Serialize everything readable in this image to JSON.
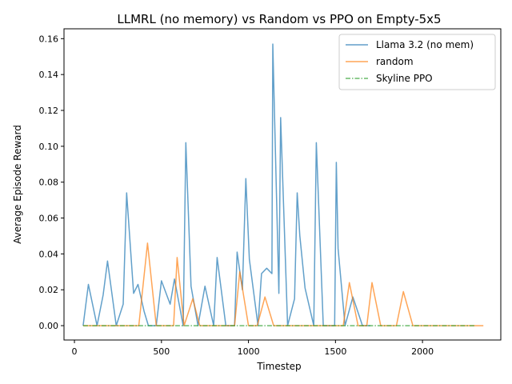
{
  "chart_data": {
    "type": "line",
    "title": "LLMRL (no memory) vs Random vs PPO on Empty-5x5",
    "xlabel": "Timestep",
    "ylabel": "Average Episode Reward",
    "xlim": [
      -60,
      2450
    ],
    "ylim": [
      -0.008,
      0.1655
    ],
    "xticks": [
      0,
      500,
      1000,
      1500,
      2000
    ],
    "yticks": [
      0.0,
      0.02,
      0.04,
      0.06,
      0.08,
      0.1,
      0.12,
      0.14,
      0.16
    ],
    "xtick_labels": [
      "0",
      "500",
      "1000",
      "1500",
      "2000"
    ],
    "ytick_labels": [
      "0.00",
      "0.02",
      "0.04",
      "0.06",
      "0.08",
      "0.10",
      "0.12",
      "0.14",
      "0.16"
    ],
    "legend_position": "top-right",
    "series": [
      {
        "name": "Llama 3.2 (no mem)",
        "color": "#1f77b4",
        "style": "solid",
        "x": [
          50,
          80,
          130,
          165,
          190,
          240,
          280,
          300,
          340,
          365,
          400,
          425,
          470,
          500,
          550,
          575,
          625,
          640,
          670,
          710,
          750,
          800,
          820,
          870,
          920,
          935,
          965,
          985,
          1005,
          1055,
          1075,
          1105,
          1135,
          1140,
          1175,
          1185,
          1225,
          1265,
          1280,
          1295,
          1325,
          1375,
          1390,
          1430,
          1495,
          1505,
          1515,
          1555,
          1600,
          1655,
          1700
        ],
        "y": [
          0.0,
          0.023,
          0.0,
          0.017,
          0.036,
          0.0,
          0.012,
          0.074,
          0.018,
          0.023,
          0.008,
          0.0,
          0.0,
          0.025,
          0.012,
          0.026,
          0.0,
          0.102,
          0.022,
          0.0,
          0.022,
          0.0,
          0.038,
          0.0,
          0.0,
          0.041,
          0.02,
          0.082,
          0.037,
          0.0,
          0.029,
          0.032,
          0.029,
          0.157,
          0.018,
          0.116,
          0.0,
          0.015,
          0.074,
          0.05,
          0.021,
          0.0,
          0.102,
          0.0,
          0.0,
          0.091,
          0.043,
          0.0,
          0.016,
          0.0,
          0.0
        ]
      },
      {
        "name": "random",
        "color": "#ff7f0e",
        "style": "solid",
        "x": [
          50,
          370,
          420,
          470,
          570,
          590,
          630,
          680,
          720,
          850,
          920,
          950,
          1000,
          1050,
          1095,
          1145,
          1500,
          1545,
          1580,
          1630,
          1680,
          1710,
          1760,
          1850,
          1890,
          1945,
          2000,
          2350
        ],
        "y": [
          0.0,
          0.0,
          0.046,
          0.0,
          0.0,
          0.038,
          0.0,
          0.015,
          0.0,
          0.0,
          0.0,
          0.03,
          0.0,
          0.0,
          0.016,
          0.0,
          0.0,
          0.0,
          0.024,
          0.0,
          0.0,
          0.024,
          0.0,
          0.0,
          0.019,
          0.0,
          0.0,
          0.0
        ]
      },
      {
        "name": "Skyline PPO",
        "color": "#2ca02c",
        "style": "dashdot",
        "x": [
          50,
          2300
        ],
        "y": [
          0.0,
          0.0
        ]
      }
    ]
  }
}
